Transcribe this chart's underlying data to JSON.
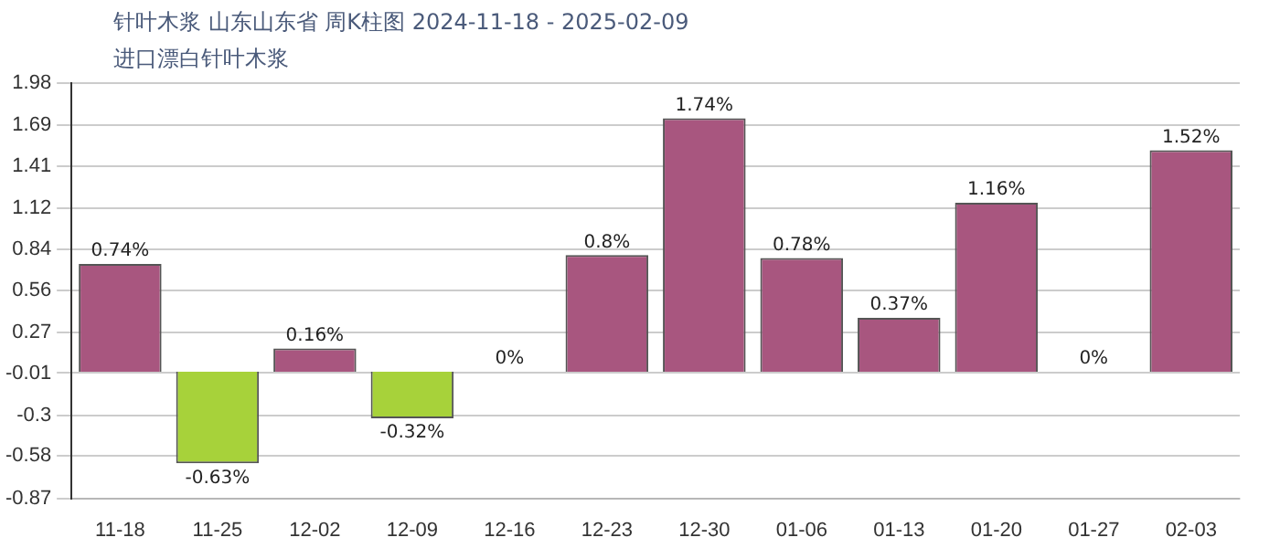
{
  "chart_data": {
    "type": "bar",
    "title": "针叶木浆 山东山东省 周K柱图 2024-11-18 - 2025-02-09",
    "subtitle": "进口漂白针叶木浆",
    "categories": [
      "11-18",
      "11-25",
      "12-02",
      "12-09",
      "12-16",
      "12-23",
      "12-30",
      "01-06",
      "01-13",
      "01-20",
      "01-27",
      "02-03"
    ],
    "values": [
      0.74,
      -0.63,
      0.16,
      -0.32,
      0,
      0.8,
      1.74,
      0.78,
      0.37,
      1.16,
      0,
      1.52
    ],
    "colors": [
      "#a8567f",
      "#a7d23a",
      "#a8567f",
      "#a7d23a",
      "#a8567f",
      "#a8567f",
      "#a8567f",
      "#a8567f",
      "#a8567f",
      "#a8567f",
      "#a8567f",
      "#a8567f"
    ],
    "value_labels": [
      "0.74%",
      "-0.63%",
      "0.16%",
      "-0.32%",
      "0%",
      "0.8%",
      "1.74%",
      "0.78%",
      "0.37%",
      "1.16%",
      "0%",
      "1.52%"
    ],
    "ylim": [
      -0.87,
      1.98
    ],
    "yticks": [
      -0.87,
      -0.58,
      -0.3,
      -0.01,
      0.27,
      0.56,
      0.84,
      1.12,
      1.41,
      1.69,
      1.98
    ],
    "grid": "y"
  }
}
